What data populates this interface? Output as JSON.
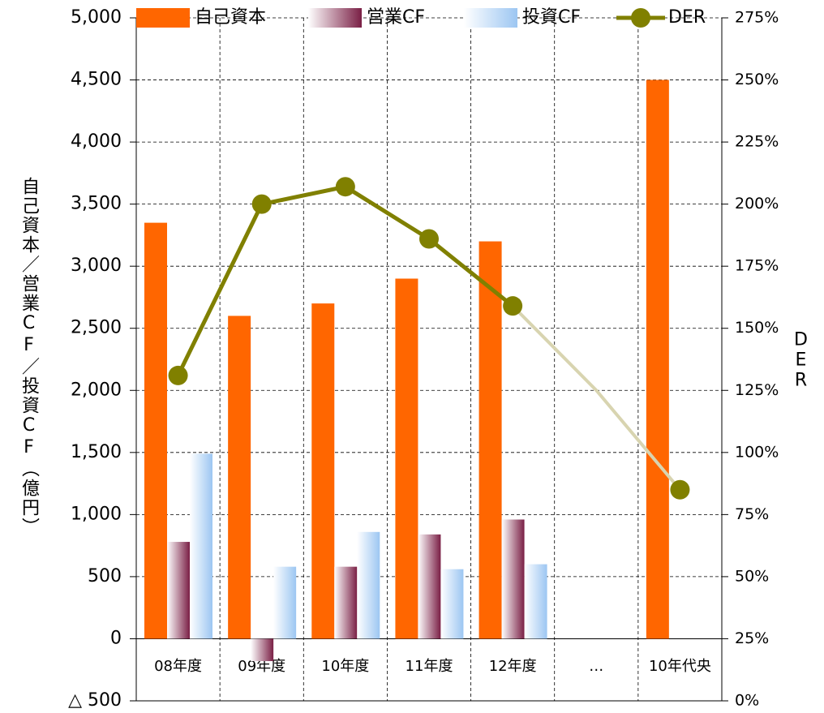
{
  "chart_data": {
    "type": "bar",
    "y_label": "自己資本／営業CF／投資CF（億円）",
    "y2_label": "DER",
    "categories": [
      "08年度",
      "09年度",
      "10年度",
      "11年度",
      "12年度",
      "…",
      "10年代央"
    ],
    "series": [
      {
        "name": "自己資本",
        "color": "#ff6600",
        "values": [
          3350,
          2600,
          2700,
          2900,
          3200,
          null,
          4500
        ]
      },
      {
        "name": "営業CF",
        "color": "#7a1f45",
        "values": [
          780,
          -180,
          580,
          840,
          960,
          null,
          null
        ]
      },
      {
        "name": "投資CF",
        "color": "#9cc6f2",
        "values": [
          1490,
          580,
          860,
          560,
          600,
          null,
          null
        ]
      },
      {
        "name": "DER",
        "type": "line",
        "axis": "y2",
        "color": "#808000",
        "values": [
          131,
          200,
          207,
          186,
          159,
          125,
          85
        ]
      }
    ],
    "ylim": [
      -500,
      5000
    ],
    "yticks": [
      {
        "value": -500,
        "label": "△ 500"
      },
      0,
      500,
      {
        "value": 1000,
        "label": "1,000"
      },
      {
        "value": 1500,
        "label": "1,500"
      },
      {
        "value": 2000,
        "label": "2,000"
      },
      {
        "value": 2500,
        "label": "2,500"
      },
      {
        "value": 3000,
        "label": "3,000"
      },
      {
        "value": 3500,
        "label": "3,500"
      },
      {
        "value": 4000,
        "label": "4,000"
      },
      {
        "value": 4500,
        "label": "4,500"
      },
      {
        "value": 5000,
        "label": "5,000"
      }
    ],
    "y2lim": [
      0,
      275
    ],
    "y2ticks": [
      {
        "value": 0,
        "label": "0%"
      },
      {
        "value": 25,
        "label": "25%"
      },
      {
        "value": 50,
        "label": "50%"
      },
      {
        "value": 75,
        "label": "75%"
      },
      {
        "value": 100,
        "label": "100%"
      },
      {
        "value": 125,
        "label": "125%"
      },
      {
        "value": 150,
        "label": "150%"
      },
      {
        "value": 175,
        "label": "175%"
      },
      {
        "value": 200,
        "label": "200%"
      },
      {
        "value": 225,
        "label": "225%"
      },
      {
        "value": 250,
        "label": "250%"
      },
      {
        "value": 275,
        "label": "275%"
      }
    ],
    "grid": true,
    "legend": "top"
  }
}
